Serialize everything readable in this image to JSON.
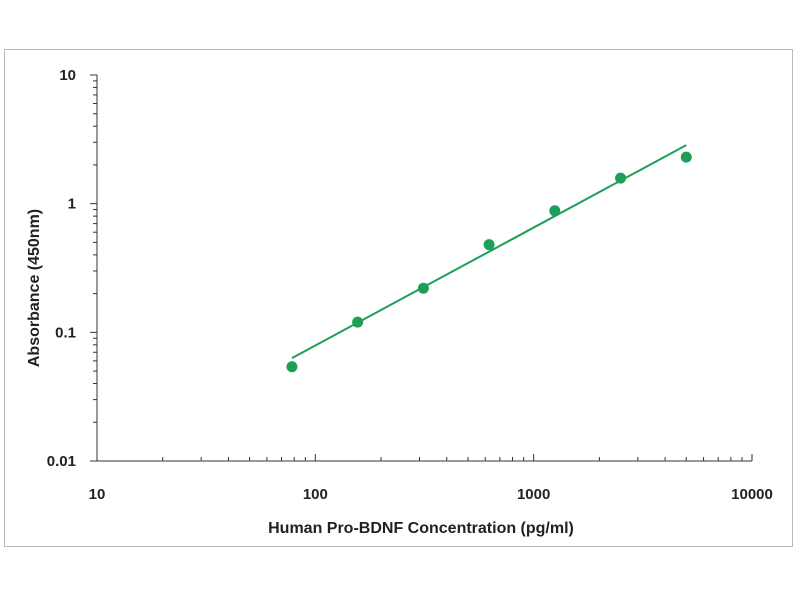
{
  "chart_data": {
    "type": "scatter",
    "title": "",
    "xlabel": "Human Pro-BDNF  Concentration (pg/ml)",
    "ylabel": "Absorbance (450nm)",
    "x_scale": "log",
    "y_scale": "log",
    "xlim": [
      10,
      10000
    ],
    "ylim": [
      0.01,
      10
    ],
    "x_ticks": [
      "10",
      "100",
      "1000",
      "10000"
    ],
    "y_ticks": [
      "0.01",
      "0.1",
      "1",
      "10"
    ],
    "grid": false,
    "legend": "none",
    "series": [
      {
        "type": "scatter",
        "x": [
          78.13,
          156.25,
          312.5,
          625,
          1250,
          2500,
          5000
        ],
        "y": [
          0.054,
          0.12,
          0.22,
          0.48,
          0.88,
          1.58,
          2.3
        ]
      },
      {
        "type": "line",
        "fit": "power",
        "x": [
          78.13,
          5000
        ],
        "y": [
          0.063,
          2.85
        ]
      }
    ],
    "colors": {
      "series": "#1f9e5a",
      "axis": "#333333",
      "text": "#222222"
    }
  }
}
